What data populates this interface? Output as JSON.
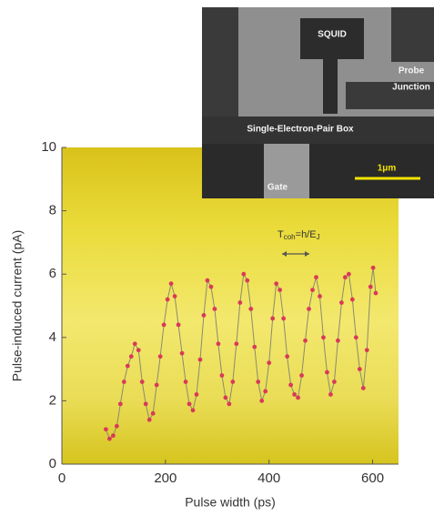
{
  "chart_data": {
    "type": "line",
    "xlabel": "Pulse width (ps)",
    "ylabel": "Pulse-induced current (pA)",
    "xlim": [
      0,
      650
    ],
    "xticks": [
      0,
      200,
      400,
      600
    ],
    "ylim": [
      0,
      10
    ],
    "yticks": [
      0,
      2,
      4,
      6,
      8,
      10
    ],
    "annotation": {
      "parts": [
        "T",
        "coh",
        "=h/E",
        "J"
      ]
    },
    "series": [
      {
        "color": "#d83a5a",
        "line_color": "#8a8a70",
        "x": [
          85,
          92,
          99,
          106,
          113,
          120,
          127,
          134,
          141,
          148,
          155,
          162,
          169,
          176,
          183,
          190,
          197,
          204,
          211,
          218,
          225,
          232,
          239,
          246,
          253,
          260,
          267,
          274,
          281,
          288,
          295,
          302,
          309,
          316,
          323,
          330,
          337,
          344,
          351,
          358,
          365,
          372,
          379,
          386,
          393,
          400,
          407,
          414,
          421,
          428,
          435,
          442,
          449,
          456,
          463,
          470,
          477,
          484,
          491,
          498,
          505,
          512,
          519,
          526,
          533,
          540,
          547,
          554,
          561,
          568,
          575,
          582,
          589,
          596,
          601,
          606
        ],
        "values": [
          1.1,
          0.8,
          0.9,
          1.2,
          1.9,
          2.6,
          3.1,
          3.4,
          3.8,
          3.6,
          2.6,
          1.9,
          1.4,
          1.6,
          2.5,
          3.4,
          4.4,
          5.2,
          5.7,
          5.3,
          4.4,
          3.5,
          2.6,
          1.9,
          1.7,
          2.2,
          3.3,
          4.7,
          5.8,
          5.6,
          4.9,
          3.8,
          2.8,
          2.1,
          1.9,
          2.6,
          3.8,
          5.1,
          6.0,
          5.8,
          4.9,
          3.7,
          2.6,
          2.0,
          2.3,
          3.2,
          4.6,
          5.7,
          5.5,
          4.6,
          3.4,
          2.5,
          2.2,
          2.1,
          2.8,
          3.9,
          4.9,
          5.5,
          5.9,
          5.3,
          4.0,
          2.9,
          2.2,
          2.6,
          3.9,
          5.1,
          5.9,
          6.0,
          5.2,
          4.0,
          3.0,
          2.4,
          3.6,
          5.6,
          6.2,
          5.4
        ]
      }
    ]
  },
  "inset": {
    "labels": [
      "SQUID",
      "Probe",
      "Junction",
      "Single-Electron-Pair Box",
      "1μm",
      "Gate"
    ]
  }
}
